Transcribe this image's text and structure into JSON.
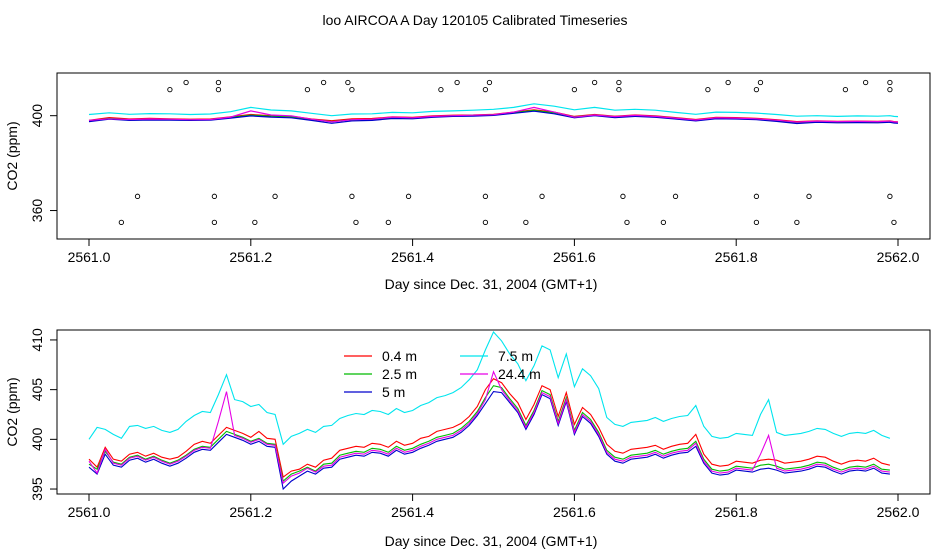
{
  "page_title": "loo AIRCOA A  Day 120105  Calibrated Timeseries",
  "chart_data": [
    {
      "type": "scatter",
      "xlabel": "Day since Dec. 31, 2004 (GMT+1)",
      "ylabel": "CO2 (ppm)",
      "xlim": [
        2561.0,
        2562.0
      ],
      "ylim": [
        348,
        418
      ],
      "xticks": [
        "2561.0",
        "2561.2",
        "2561.4",
        "2561.6",
        "2561.8",
        "2562.0"
      ],
      "yticks": [
        "360",
        "400"
      ],
      "grid": false,
      "scatter_points": {
        "x": [
          2561.12,
          2561.16,
          2561.29,
          2561.32,
          2561.455,
          2561.495,
          2561.625,
          2561.655,
          2561.79,
          2561.83,
          2561.96,
          2561.99,
          2561.1,
          2561.16,
          2561.27,
          2561.325,
          2561.435,
          2561.49,
          2561.6,
          2561.655,
          2561.765,
          2561.825,
          2561.935,
          2561.99,
          2561.06,
          2561.155,
          2561.23,
          2561.325,
          2561.395,
          2561.49,
          2561.56,
          2561.66,
          2561.725,
          2561.825,
          2561.89,
          2561.99,
          2561.04,
          2561.155,
          2561.205,
          2561.33,
          2561.37,
          2561.49,
          2561.54,
          2561.665,
          2561.71,
          2561.825,
          2561.875,
          2561.995
        ],
        "y": [
          414,
          414,
          414,
          414,
          414,
          414,
          414,
          414,
          414,
          414,
          414,
          414,
          411,
          411,
          411,
          411,
          411,
          411,
          411,
          411,
          411,
          411,
          411,
          411,
          366,
          366,
          366,
          366,
          366,
          366,
          366,
          366,
          366,
          366,
          366,
          366,
          355,
          355,
          355,
          355,
          355,
          355,
          355,
          355,
          355,
          355,
          355,
          355
        ]
      },
      "series": [
        {
          "name": "0.4 m",
          "color": "#ff0000",
          "y": [
            398,
            399.2,
            398.6,
            398.9,
            398.7,
            398.5,
            398.6,
            399.5,
            400.5,
            400,
            399.8,
            398.6,
            397.9,
            398.7,
            398.8,
            399.5,
            399.3,
            399.9,
            400.2,
            400.3,
            400.6,
            401.5,
            402.5,
            401.5,
            399.7,
            400.5,
            399.8,
            400.3,
            399.9,
            399.2,
            398.4,
            399.3,
            399.2,
            398.9,
            398.3,
            397.5,
            397.8,
            397.6,
            397.7,
            397.6,
            397.8,
            397.5,
            397.4
          ]
        },
        {
          "name": "2.5 m",
          "color": "#00bb00",
          "y": [
            397.8,
            398.8,
            398.3,
            398.5,
            398.4,
            398.3,
            398.4,
            399.3,
            400.2,
            399.8,
            399.5,
            398.4,
            397.5,
            398.3,
            398.4,
            399.2,
            399,
            399.6,
            400,
            400.1,
            400.4,
            401.3,
            402.2,
            401.2,
            399.5,
            400.3,
            399.6,
            400,
            399.7,
            399,
            398.1,
            399,
            398.9,
            398.6,
            397.9,
            397.1,
            397.5,
            397.3,
            397.4,
            397.3,
            397.5,
            397.2,
            397.1
          ]
        },
        {
          "name": "5 m",
          "color": "#0000cc",
          "y": [
            397.5,
            398.5,
            398,
            398.2,
            398.1,
            398,
            398.1,
            399,
            399.9,
            399.4,
            399.1,
            398,
            396.8,
            397.8,
            398,
            398.8,
            398.7,
            399.3,
            399.7,
            399.8,
            400.1,
            401,
            401.9,
            400.8,
            399.1,
            400,
            399.2,
            399.7,
            399.3,
            398.6,
            397.8,
            398.7,
            398.6,
            398.3,
            397.6,
            396.7,
            397.2,
            397,
            397.1,
            397,
            397.2,
            396.9,
            396.8
          ]
        },
        {
          "name": "7.5 m",
          "color": "#00e5ee",
          "y": [
            400.5,
            401.2,
            400.6,
            400.9,
            400.8,
            400.5,
            400.7,
            401.7,
            403.5,
            402.4,
            402,
            401,
            400,
            400.7,
            400.8,
            401.4,
            401.2,
            401.8,
            402,
            402.3,
            402.7,
            403.5,
            405,
            404,
            402.5,
            403.5,
            402.3,
            402.7,
            402.3,
            401.4,
            400.6,
            401.5,
            401.4,
            401.1,
            400.5,
            399.8,
            400,
            399.7,
            399.9,
            399.8,
            400,
            399.7,
            399.6
          ]
        },
        {
          "name": "24.4 m",
          "color": "#e600e6",
          "y": [
            398,
            398.7,
            398.4,
            398.6,
            398.5,
            398.3,
            398.4,
            399.4,
            402,
            400.3,
            399.9,
            398.5,
            397.4,
            398.3,
            398.5,
            399.4,
            399.1,
            399.7,
            400,
            400.2,
            400.4,
            401.5,
            403.5,
            401.5,
            399.4,
            400.3,
            399.6,
            400.1,
            399.7,
            399,
            398.2,
            399.1,
            399,
            398.7,
            398.1,
            397.3,
            397.7,
            397.5,
            397.6,
            397.5,
            397.7,
            397.4,
            397.3
          ]
        }
      ],
      "series_x": [
        2561.0,
        2561.025,
        2561.05,
        2561.075,
        2561.1,
        2561.125,
        2561.15,
        2561.175,
        2561.2,
        2561.225,
        2561.25,
        2561.275,
        2561.3,
        2561.325,
        2561.35,
        2561.375,
        2561.4,
        2561.425,
        2561.45,
        2561.475,
        2561.5,
        2561.525,
        2561.55,
        2561.575,
        2561.6,
        2561.625,
        2561.65,
        2561.675,
        2561.7,
        2561.725,
        2561.75,
        2561.775,
        2561.8,
        2561.825,
        2561.85,
        2561.875,
        2561.9,
        2561.925,
        2561.95,
        2561.975,
        2561.99,
        2561.995,
        2562.0
      ]
    },
    {
      "type": "line",
      "xlabel": "Day since Dec. 31, 2004 (GMT+1)",
      "ylabel": "CO2 (ppm)",
      "xlim": [
        2561.0,
        2562.0
      ],
      "ylim": [
        394.5,
        411
      ],
      "xticks": [
        "2561.0",
        "2561.2",
        "2561.4",
        "2561.6",
        "2561.8",
        "2562.0"
      ],
      "yticks": [
        "395",
        "400",
        "405",
        "410"
      ],
      "grid": false,
      "legend": {
        "placement": "top-center"
      },
      "x": [
        2561.0,
        2561.01,
        2561.02,
        2561.03,
        2561.04,
        2561.05,
        2561.06,
        2561.07,
        2561.08,
        2561.09,
        2561.1,
        2561.11,
        2561.12,
        2561.13,
        2561.14,
        2561.15,
        2561.16,
        2561.17,
        2561.18,
        2561.19,
        2561.2,
        2561.21,
        2561.22,
        2561.23,
        2561.24,
        2561.25,
        2561.26,
        2561.27,
        2561.28,
        2561.29,
        2561.3,
        2561.31,
        2561.32,
        2561.33,
        2561.34,
        2561.35,
        2561.36,
        2561.37,
        2561.38,
        2561.39,
        2561.4,
        2561.41,
        2561.42,
        2561.43,
        2561.44,
        2561.45,
        2561.46,
        2561.47,
        2561.48,
        2561.49,
        2561.5,
        2561.51,
        2561.52,
        2561.53,
        2561.54,
        2561.55,
        2561.56,
        2561.57,
        2561.58,
        2561.59,
        2561.6,
        2561.61,
        2561.62,
        2561.63,
        2561.64,
        2561.65,
        2561.66,
        2561.67,
        2561.68,
        2561.69,
        2561.7,
        2561.71,
        2561.72,
        2561.73,
        2561.74,
        2561.75,
        2561.76,
        2561.77,
        2561.78,
        2561.79,
        2561.8,
        2561.81,
        2561.82,
        2561.83,
        2561.84,
        2561.85,
        2561.86,
        2561.87,
        2561.88,
        2561.89,
        2561.9,
        2561.91,
        2561.92,
        2561.93,
        2561.94,
        2561.95,
        2561.96,
        2561.97,
        2561.98,
        2561.99
      ],
      "series": [
        {
          "name": "0.4 m",
          "color": "#ff0000",
          "values": [
            398.0,
            397.2,
            399.2,
            398.0,
            397.8,
            398.5,
            398.7,
            398.3,
            398.6,
            398.2,
            398.0,
            398.2,
            398.8,
            399.5,
            399.8,
            399.6,
            400.4,
            401.2,
            400.9,
            400.6,
            400.2,
            400.8,
            400.1,
            400.0,
            396.2,
            396.8,
            397.0,
            397.5,
            397.2,
            397.9,
            398.1,
            398.9,
            399.1,
            399.3,
            399.2,
            399.6,
            399.5,
            399.2,
            399.8,
            399.4,
            399.6,
            400.1,
            400.3,
            400.8,
            401.0,
            401.2,
            401.6,
            402.3,
            403.3,
            405.0,
            406.1,
            405.7,
            404.6,
            403.7,
            402.0,
            403.5,
            405.4,
            405.0,
            402.3,
            404.7,
            401.5,
            403.2,
            402.5,
            401.2,
            399.5,
            398.8,
            398.6,
            399.0,
            399.1,
            399.2,
            399.4,
            399.0,
            399.3,
            399.5,
            399.6,
            400.5,
            398.5,
            397.5,
            397.3,
            397.4,
            397.8,
            397.7,
            397.6,
            397.9,
            398.0,
            397.9,
            397.6,
            397.7,
            397.8,
            398.0,
            398.3,
            398.2,
            397.8,
            397.5,
            397.8,
            397.9,
            397.8,
            398.1,
            397.6,
            397.4
          ]
        },
        {
          "name": "2.5 m",
          "color": "#00bb00",
          "values": [
            397.5,
            397.0,
            398.8,
            397.7,
            397.5,
            398.2,
            398.4,
            398.0,
            398.3,
            397.9,
            397.6,
            397.9,
            398.4,
            399.0,
            399.3,
            399.2,
            400.0,
            400.8,
            400.5,
            400.2,
            399.8,
            400.1,
            399.6,
            399.5,
            395.8,
            396.5,
            396.8,
            397.2,
            396.8,
            397.5,
            397.6,
            398.4,
            398.6,
            398.8,
            398.7,
            399.1,
            399.0,
            398.7,
            399.3,
            398.9,
            399.1,
            399.5,
            399.8,
            400.2,
            400.4,
            400.6,
            401.1,
            401.8,
            402.8,
            404.2,
            405.4,
            405.2,
            404.1,
            403.1,
            401.4,
            402.9,
            404.9,
            404.5,
            401.8,
            404.2,
            400.9,
            402.7,
            402.0,
            400.7,
            398.9,
            398.2,
            398.0,
            398.4,
            398.5,
            398.6,
            398.9,
            398.5,
            398.8,
            399.0,
            399.1,
            399.8,
            398.0,
            397.0,
            396.8,
            396.9,
            397.3,
            397.2,
            397.1,
            397.4,
            397.5,
            397.3,
            397.0,
            397.1,
            397.2,
            397.4,
            397.7,
            397.6,
            397.2,
            396.9,
            397.2,
            397.3,
            397.2,
            397.5,
            397.0,
            396.9
          ]
        },
        {
          "name": "5 m",
          "color": "#0000cc",
          "values": [
            397.2,
            396.5,
            398.5,
            397.4,
            397.2,
            397.9,
            398.1,
            397.7,
            398.0,
            397.6,
            397.3,
            397.6,
            398.1,
            398.7,
            399.0,
            398.9,
            399.7,
            400.5,
            400.2,
            399.9,
            399.5,
            399.8,
            399.3,
            399.2,
            395.0,
            395.8,
            396.3,
            396.8,
            396.5,
            397.1,
            397.2,
            398.0,
            398.2,
            398.4,
            398.3,
            398.7,
            398.6,
            398.3,
            398.9,
            398.5,
            398.7,
            399.1,
            399.4,
            399.8,
            400.0,
            400.2,
            400.7,
            401.4,
            402.4,
            403.6,
            404.8,
            404.7,
            403.7,
            402.7,
            401.0,
            402.5,
            404.5,
            404.1,
            401.4,
            403.8,
            400.5,
            402.3,
            401.6,
            400.3,
            398.5,
            397.8,
            397.6,
            398.0,
            398.1,
            398.2,
            398.5,
            398.1,
            398.4,
            398.6,
            398.7,
            399.3,
            397.6,
            396.6,
            396.4,
            396.5,
            396.9,
            396.8,
            396.7,
            397.0,
            397.1,
            396.9,
            396.6,
            396.7,
            396.8,
            397.0,
            397.3,
            397.2,
            396.8,
            396.5,
            396.8,
            396.9,
            396.8,
            397.1,
            396.6,
            396.5
          ]
        },
        {
          "name": "7.5 m",
          "color": "#00e5ee",
          "values": [
            400.0,
            401.2,
            401.0,
            400.5,
            400.1,
            401.3,
            401.4,
            401.1,
            401.3,
            400.9,
            400.7,
            401.0,
            401.8,
            402.4,
            402.8,
            402.7,
            404.5,
            406.5,
            404.0,
            403.8,
            403.3,
            403.5,
            402.7,
            402.5,
            399.5,
            400.3,
            400.6,
            401.0,
            400.7,
            401.3,
            401.4,
            402.1,
            402.4,
            402.6,
            402.5,
            402.9,
            402.8,
            402.5,
            403.1,
            402.7,
            402.9,
            403.4,
            403.7,
            404.2,
            404.4,
            404.7,
            405.2,
            406.0,
            407.0,
            409.0,
            410.8,
            409.9,
            408.6,
            407.6,
            405.9,
            407.4,
            409.4,
            409.0,
            406.2,
            408.6,
            405.3,
            407.1,
            406.4,
            405.1,
            402.2,
            401.5,
            401.3,
            401.7,
            401.8,
            401.9,
            402.2,
            401.8,
            402.1,
            402.3,
            402.4,
            403.4,
            401.3,
            400.3,
            400.1,
            400.2,
            400.6,
            400.5,
            400.4,
            402.5,
            404.0,
            400.7,
            400.4,
            400.5,
            400.6,
            400.8,
            401.1,
            401.0,
            400.6,
            400.3,
            400.6,
            400.7,
            400.6,
            400.9,
            400.4,
            400.1
          ]
        },
        {
          "name": "24.4 m",
          "color": "#e600e6",
          "values": [
            397.8,
            396.6,
            399.0,
            397.6,
            397.4,
            398.1,
            398.3,
            397.9,
            398.2,
            397.8,
            397.5,
            397.8,
            398.3,
            398.9,
            399.2,
            399.1,
            401.8,
            404.8,
            400.4,
            400.1,
            399.7,
            400.0,
            399.5,
            399.4,
            395.6,
            396.3,
            396.6,
            397.1,
            396.7,
            397.3,
            397.4,
            398.2,
            398.4,
            398.6,
            398.5,
            398.9,
            398.8,
            398.5,
            399.1,
            398.7,
            398.9,
            399.3,
            399.6,
            400.0,
            400.2,
            400.4,
            400.9,
            401.6,
            402.6,
            404.0,
            406.8,
            405.0,
            403.9,
            402.9,
            401.2,
            402.7,
            404.7,
            404.3,
            401.6,
            404.0,
            400.7,
            402.5,
            401.8,
            400.5,
            398.7,
            398.0,
            397.8,
            398.2,
            398.3,
            398.4,
            398.7,
            398.3,
            398.6,
            398.8,
            398.9,
            399.6,
            397.8,
            396.8,
            396.6,
            396.7,
            397.1,
            397.0,
            396.9,
            398.5,
            400.4,
            397.1,
            396.8,
            396.9,
            397.0,
            397.2,
            397.5,
            397.4,
            397.0,
            396.7,
            397.0,
            397.1,
            397.0,
            397.3,
            396.8,
            396.7
          ]
        }
      ]
    }
  ]
}
